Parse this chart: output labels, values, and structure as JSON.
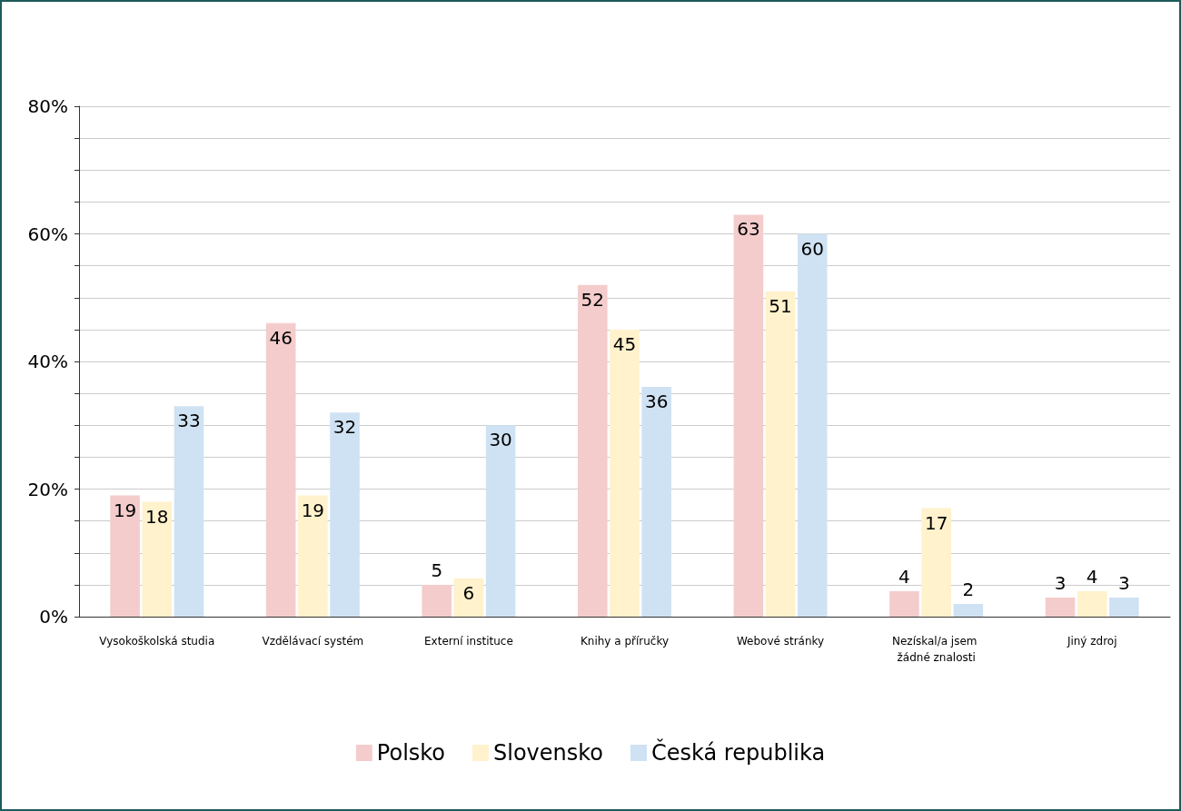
{
  "chart_data": {
    "type": "bar",
    "categories": [
      "Vysokoškolská studia",
      "Vzdělávací systém",
      "Externí instituce",
      "Knihy a příručky",
      "Webové stránky",
      "Nezískal/a jsem žádné znalosti",
      "Jiný zdroj"
    ],
    "series": [
      {
        "name": "Polsko",
        "color": "#f4cccc",
        "values": [
          19,
          46,
          5,
          52,
          63,
          4,
          3
        ]
      },
      {
        "name": "Slovensko",
        "color": "#fff2cc",
        "values": [
          18,
          19,
          6,
          45,
          51,
          17,
          4
        ]
      },
      {
        "name": "Česká republika",
        "color": "#cfe2f3",
        "values": [
          33,
          32,
          30,
          36,
          60,
          2,
          3
        ]
      }
    ],
    "ylim": [
      0,
      80
    ],
    "yticks": [
      {
        "value": 0,
        "label": "0%"
      },
      {
        "value": 5,
        "label": null
      },
      {
        "value": 10,
        "label": null
      },
      {
        "value": 15,
        "label": null
      },
      {
        "value": 20,
        "label": "20%"
      },
      {
        "value": 25,
        "label": null
      },
      {
        "value": 30,
        "label": null
      },
      {
        "value": 35,
        "label": null
      },
      {
        "value": 40,
        "label": "40%"
      },
      {
        "value": 45,
        "label": null
      },
      {
        "value": 50,
        "label": null
      },
      {
        "value": 55,
        "label": null
      },
      {
        "value": 60,
        "label": "60%"
      },
      {
        "value": 65,
        "label": null
      },
      {
        "value": 70,
        "label": null
      },
      {
        "value": 75,
        "label": null
      },
      {
        "value": 80,
        "label": "80%"
      }
    ],
    "grid": "y",
    "legend": "bottom",
    "data_labels": true
  }
}
